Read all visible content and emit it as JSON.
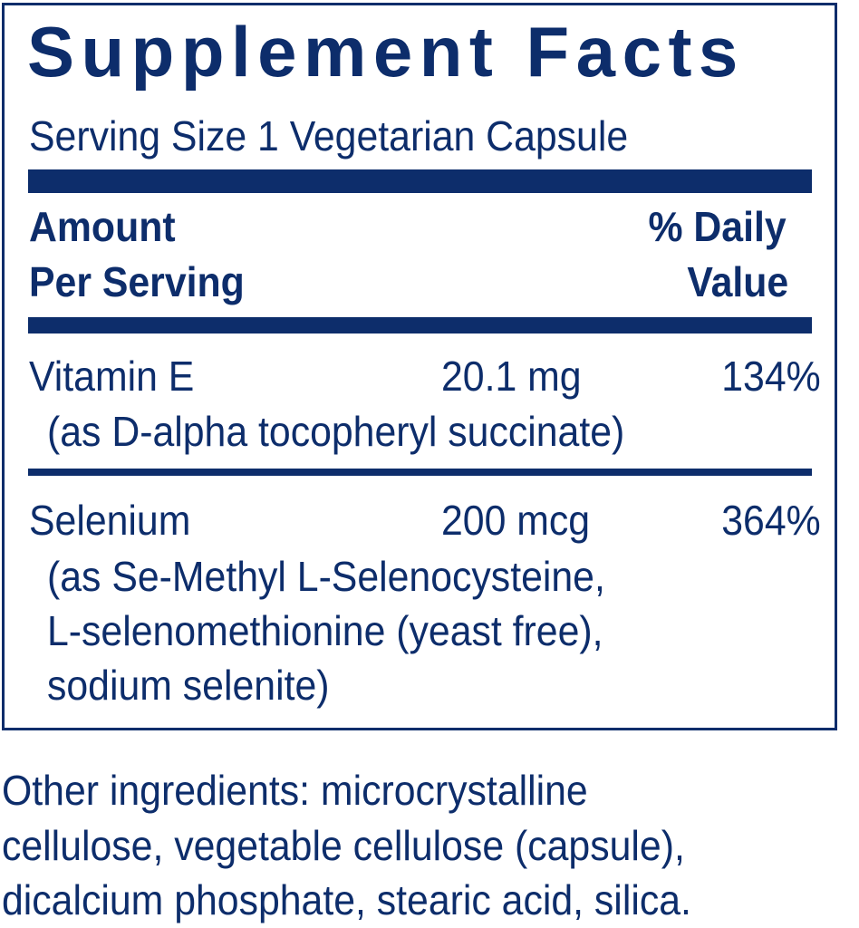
{
  "title": "Supplement Facts",
  "serving_size": "Serving Size 1 Vegetarian Capsule",
  "header": {
    "amount_line1": "Amount",
    "amount_line2": "Per Serving",
    "dv_line1": "% Daily",
    "dv_line2": "Value"
  },
  "nutrients": [
    {
      "name": "Vitamin E",
      "amount": "20.1 mg",
      "dv": "134%",
      "detail": [
        "(as D-alpha tocopheryl succinate)"
      ]
    },
    {
      "name": "Selenium",
      "amount": "200 mcg",
      "dv": "364%",
      "detail": [
        "(as Se-Methyl L-Selenocysteine,",
        "L-selenomethionine (yeast free),",
        "sodium selenite)"
      ]
    }
  ],
  "other_ingredients": [
    "Other ingredients: microcrystalline",
    "cellulose, vegetable cellulose (capsule),",
    "dicalcium phosphate, stearic acid, silica."
  ],
  "colors": {
    "ink": "#0d2d6b",
    "background": "#ffffff"
  }
}
